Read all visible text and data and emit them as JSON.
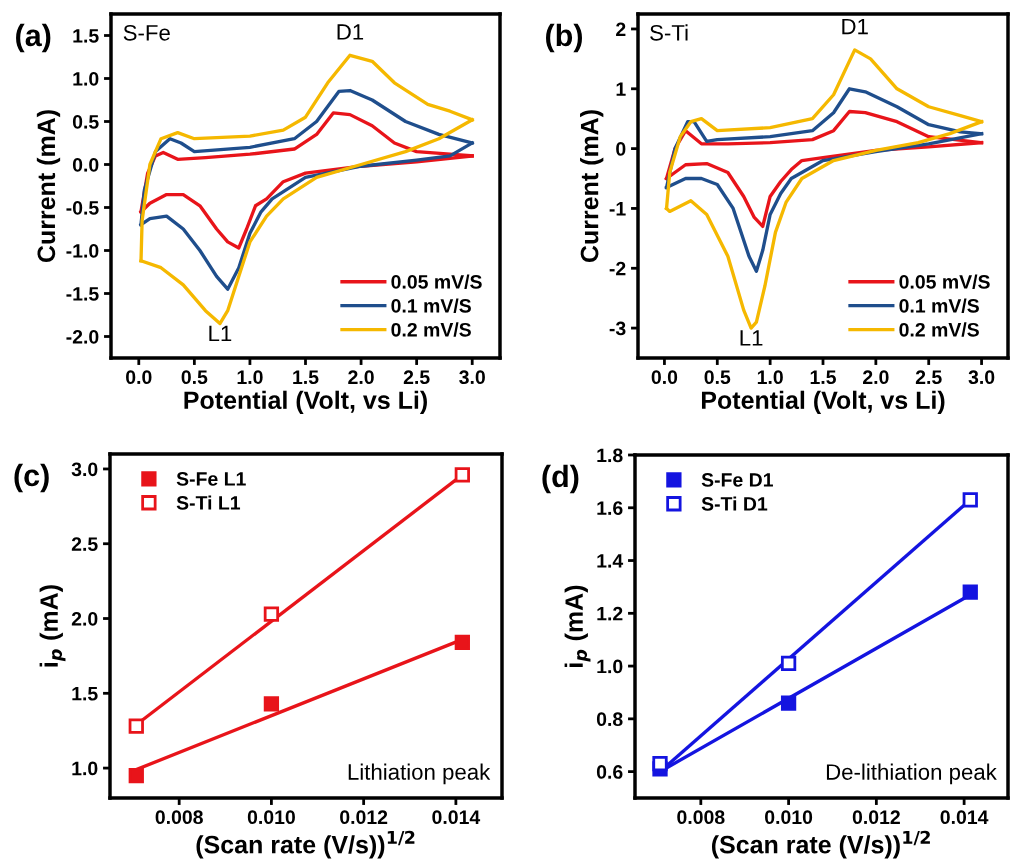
{
  "chart_data": [
    {
      "type": "line",
      "xlabel": "Potential (Volt, vs Li)",
      "ylabel": "Current (mA)",
      "xlim": [
        -0.25,
        3.25
      ],
      "ylim": [
        -2.25,
        1.75
      ],
      "xticks": [
        {
          "value": 0,
          "label": "0.0"
        },
        0.5,
        {
          "value": 1,
          "label": "1.0"
        },
        1.5,
        {
          "value": 2,
          "label": "2.0"
        },
        2.5,
        {
          "value": 3,
          "label": "3.0"
        }
      ],
      "yticks": [
        {
          "value": -2,
          "label": "-2.0"
        },
        -1.5,
        {
          "value": -1,
          "label": "-1.0"
        },
        -0.5,
        {
          "value": 0,
          "label": "0.0"
        },
        0.5,
        {
          "value": 1,
          "label": "1.0"
        },
        1.5
      ],
      "legend": "bottom right",
      "grid": false,
      "marker": "none",
      "line_style": "solid",
      "annotations": [
        "(a)",
        "S-Fe",
        {
          "text": "D1",
          "x": 1.9,
          "y": 1.27
        },
        {
          "text": "L1",
          "x": 0.73,
          "y": -1.85
        }
      ],
      "series": [
        {
          "name": "0.05 mV/S",
          "color": "#e8141a",
          "x": [
            0.02,
            0.08,
            0.15,
            0.22,
            0.35,
            0.6,
            1.0,
            1.4,
            1.6,
            1.75,
            1.9,
            2.1,
            2.3,
            2.5,
            2.8,
            3.0
          ],
          "values": [
            -0.55,
            -0.1,
            0.1,
            0.14,
            0.06,
            0.08,
            0.12,
            0.18,
            0.35,
            0.6,
            0.58,
            0.45,
            0.25,
            0.15,
            0.12,
            0.1
          ]
        },
        {
          "color": "#e8141a",
          "x": [
            0.02,
            0.1,
            0.25,
            0.4,
            0.55,
            0.7,
            0.8,
            0.9,
            0.97,
            1.05,
            1.15,
            1.3,
            1.5,
            2.0,
            2.5,
            3.0
          ],
          "values": [
            -0.55,
            -0.45,
            -0.35,
            -0.35,
            -0.48,
            -0.75,
            -0.9,
            -0.97,
            -0.75,
            -0.48,
            -0.4,
            -0.2,
            -0.1,
            -0.02,
            0.03,
            0.1
          ]
        },
        {
          "name": "0.1 mV/S",
          "color": "#1f4e8c",
          "x": [
            0.02,
            0.05,
            0.15,
            0.28,
            0.38,
            0.5,
            1.0,
            1.4,
            1.6,
            1.8,
            1.9,
            2.1,
            2.4,
            2.7,
            3.0
          ],
          "values": [
            -0.7,
            -0.3,
            0.15,
            0.3,
            0.25,
            0.15,
            0.2,
            0.3,
            0.5,
            0.85,
            0.86,
            0.75,
            0.5,
            0.35,
            0.25
          ]
        },
        {
          "color": "#1f4e8c",
          "x": [
            0.02,
            0.1,
            0.25,
            0.4,
            0.55,
            0.7,
            0.8,
            0.9,
            1.0,
            1.1,
            1.2,
            1.5,
            2.0,
            2.5,
            2.8,
            3.0
          ],
          "values": [
            -0.7,
            -0.63,
            -0.6,
            -0.75,
            -1.0,
            -1.3,
            -1.45,
            -1.2,
            -0.8,
            -0.55,
            -0.4,
            -0.15,
            -0.02,
            0.05,
            0.1,
            0.25
          ]
        },
        {
          "name": "0.2 mV/S",
          "color": "#f5b800",
          "x": [
            0.02,
            0.03,
            0.1,
            0.2,
            0.35,
            0.5,
            1.0,
            1.3,
            1.5,
            1.7,
            1.9,
            2.1,
            2.3,
            2.6,
            2.8,
            3.0
          ],
          "values": [
            -1.12,
            -0.65,
            0.0,
            0.3,
            0.37,
            0.3,
            0.33,
            0.4,
            0.55,
            0.95,
            1.27,
            1.2,
            0.95,
            0.7,
            0.62,
            0.52
          ]
        },
        {
          "color": "#f5b800",
          "x": [
            0.02,
            0.2,
            0.4,
            0.6,
            0.73,
            0.8,
            0.9,
            1.0,
            1.15,
            1.3,
            1.6,
            2.0,
            2.4,
            2.7,
            3.0
          ],
          "values": [
            -1.12,
            -1.2,
            -1.4,
            -1.7,
            -1.85,
            -1.7,
            -1.3,
            -0.9,
            -0.6,
            -0.4,
            -0.15,
            0.0,
            0.15,
            0.3,
            0.52
          ]
        }
      ]
    },
    {
      "type": "line",
      "xlabel": "Potential (Volt, vs Li)",
      "ylabel": "Current (mA)",
      "xlim": [
        -0.25,
        3.25
      ],
      "ylim": [
        -3.5,
        2.25
      ],
      "xticks": [
        {
          "value": 0,
          "label": "0.0"
        },
        0.5,
        {
          "value": 1,
          "label": "1.0"
        },
        1.5,
        {
          "value": 2,
          "label": "2.0"
        },
        2.5,
        {
          "value": 3,
          "label": "3.0"
        }
      ],
      "yticks": [
        -3,
        -2,
        -1,
        0,
        1,
        2
      ],
      "legend": "bottom right",
      "grid": false,
      "marker": "none",
      "line_style": "solid",
      "annotations": [
        "(b)",
        "S-Ti",
        {
          "text": "D1",
          "x": 1.8,
          "y": 1.65
        },
        {
          "text": "L1",
          "x": 0.82,
          "y": -3.0
        }
      ],
      "series": [
        {
          "name": "0.05 mV/S",
          "color": "#e8141a",
          "x": [
            0.02,
            0.1,
            0.2,
            0.35,
            0.6,
            1.0,
            1.4,
            1.6,
            1.75,
            1.9,
            2.2,
            2.5,
            3.0
          ],
          "values": [
            -0.5,
            0.0,
            0.3,
            0.08,
            0.08,
            0.1,
            0.15,
            0.3,
            0.62,
            0.6,
            0.45,
            0.2,
            0.1
          ]
        },
        {
          "color": "#e8141a",
          "x": [
            0.02,
            0.2,
            0.4,
            0.6,
            0.75,
            0.85,
            0.93,
            1.0,
            1.1,
            1.2,
            1.3,
            1.5,
            2.0,
            2.5,
            3.0
          ],
          "values": [
            -0.5,
            -0.27,
            -0.25,
            -0.4,
            -0.8,
            -1.15,
            -1.3,
            -0.8,
            -0.55,
            -0.35,
            -0.2,
            -0.15,
            -0.03,
            0.03,
            0.1
          ]
        },
        {
          "name": "0.1 mV/S",
          "color": "#1f4e8c",
          "x": [
            0.02,
            0.1,
            0.22,
            0.28,
            0.4,
            0.5,
            1.0,
            1.4,
            1.6,
            1.75,
            1.9,
            2.2,
            2.5,
            2.8,
            3.0
          ],
          "values": [
            -0.65,
            0.0,
            0.45,
            0.45,
            0.12,
            0.15,
            0.2,
            0.3,
            0.6,
            1.0,
            0.95,
            0.7,
            0.4,
            0.28,
            0.25
          ]
        },
        {
          "color": "#1f4e8c",
          "x": [
            0.02,
            0.2,
            0.35,
            0.5,
            0.65,
            0.8,
            0.87,
            0.93,
            1.0,
            1.1,
            1.2,
            1.5,
            2.0,
            2.5,
            3.0
          ],
          "values": [
            -0.65,
            -0.5,
            -0.5,
            -0.6,
            -1.0,
            -1.8,
            -2.05,
            -1.7,
            -1.1,
            -0.75,
            -0.5,
            -0.2,
            -0.05,
            0.08,
            0.25
          ]
        },
        {
          "name": "0.2 mV/S",
          "color": "#f5b800",
          "x": [
            0.02,
            0.05,
            0.15,
            0.25,
            0.35,
            0.5,
            1.0,
            1.4,
            1.6,
            1.8,
            1.95,
            2.2,
            2.5,
            2.8,
            3.0
          ],
          "values": [
            -1.0,
            -0.4,
            0.2,
            0.45,
            0.5,
            0.3,
            0.35,
            0.5,
            0.9,
            1.65,
            1.5,
            1.0,
            0.7,
            0.55,
            0.45
          ]
        },
        {
          "color": "#f5b800",
          "x": [
            0.02,
            0.05,
            0.25,
            0.4,
            0.6,
            0.75,
            0.82,
            0.87,
            0.95,
            1.05,
            1.15,
            1.3,
            1.6,
            2.0,
            2.4,
            2.7,
            3.0
          ],
          "values": [
            -1.0,
            -1.05,
            -0.87,
            -1.1,
            -1.8,
            -2.7,
            -3.0,
            -2.9,
            -2.3,
            -1.4,
            -0.9,
            -0.5,
            -0.2,
            -0.03,
            0.1,
            0.25,
            0.45
          ]
        }
      ]
    },
    {
      "type": "scatter",
      "xlabel": "(Scan rate (V/s))$^{1/2}$",
      "ylabel": "i$_{p}$ (mA)",
      "xlim": [
        0.0065,
        0.015
      ],
      "ylim": [
        0.8,
        3.1
      ],
      "xticks": [
        0.008,
        {
          "value": 0.01,
          "label": "0.010"
        },
        0.012,
        0.014
      ],
      "yticks": [
        {
          "value": 1,
          "label": "1.0"
        },
        1.5,
        {
          "value": 2,
          "label": "2.0"
        },
        2.5,
        {
          "value": 3,
          "label": "3.0"
        }
      ],
      "legend": "top left",
      "grid": false,
      "annotations": [
        "(c)",
        "Lithiation peak"
      ],
      "series": [
        {
          "name": "S-Fe L1",
          "color": "#e8141a",
          "marker": "square",
          "x": [
            0.00707,
            0.01,
            0.01414
          ],
          "values": [
            0.95,
            1.43,
            1.84
          ]
        },
        {
          "name": "S-Ti L1",
          "color": "#e8141a",
          "marker": "square",
          "x": [
            0.00707,
            0.01,
            0.01414
          ],
          "values": [
            1.28,
            2.03,
            2.96
          ]
        },
        {
          "type": "line",
          "color": "#e8141a",
          "marker": "none",
          "x": [
            0.00707,
            0.01414
          ],
          "values": [
            0.99,
            1.86
          ]
        },
        {
          "type": "line",
          "color": "#e8141a",
          "marker": "none",
          "x": [
            0.00707,
            0.01414
          ],
          "values": [
            1.29,
            2.96
          ]
        }
      ]
    },
    {
      "type": "scatter",
      "xlabel": "(Scan rate (V/s))$^{1/2}$",
      "ylabel": "i$_{p}$ (mA)",
      "xlim": [
        0.0065,
        0.015
      ],
      "ylim": [
        0.5,
        1.8
      ],
      "xticks": [
        0.008,
        {
          "value": 0.01,
          "label": "0.010"
        },
        0.012,
        0.014
      ],
      "yticks": [
        0.6,
        0.8,
        {
          "value": 1,
          "label": "1.0"
        },
        1.2,
        1.4,
        1.6,
        1.8
      ],
      "legend": "top left",
      "grid": false,
      "annotations": [
        "(d)",
        "De-lithiation peak"
      ],
      "series": [
        {
          "name": "S-Fe D1",
          "color": "#1414e0",
          "marker": "square",
          "x": [
            0.00707,
            0.01,
            0.01414
          ],
          "values": [
            0.61,
            0.86,
            1.28
          ]
        },
        {
          "name": "S-Ti D1",
          "color": "#1414e0",
          "marker": "square",
          "x": [
            0.00707,
            0.01,
            0.01414
          ],
          "values": [
            0.63,
            1.01,
            1.63
          ]
        },
        {
          "type": "line",
          "color": "#1414e0",
          "marker": "none",
          "x": [
            0.00707,
            0.01414
          ],
          "values": [
            0.6,
            1.27
          ]
        },
        {
          "type": "line",
          "color": "#1414e0",
          "marker": "none",
          "x": [
            0.00707,
            0.01414
          ],
          "values": [
            0.6,
            1.63
          ]
        }
      ]
    }
  ]
}
